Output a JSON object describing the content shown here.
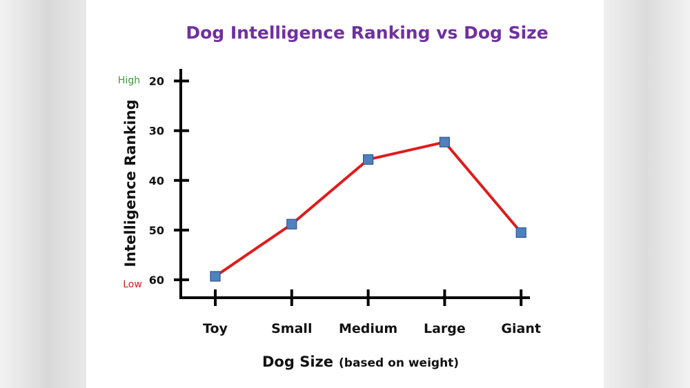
{
  "chart_data": {
    "type": "line",
    "title": "Dog Intelligence Ranking vs Dog Size",
    "xlabel": "Dog Size",
    "xlabel_note": "(based on weight)",
    "ylabel": "Intelligence Ranking",
    "y_high_label": "High",
    "y_low_label": "Low",
    "categories": [
      "Toy",
      "Small",
      "Medium",
      "Large",
      "Giant"
    ],
    "values": [
      59.3,
      48.8,
      35.8,
      32.3,
      50.5
    ],
    "ylim": [
      20,
      60
    ],
    "y_inverted": true,
    "yticks": [
      20,
      30,
      40,
      50,
      60
    ],
    "grid": false,
    "colors": {
      "title": "#7030a0",
      "line": "#e01b1b",
      "marker": "#4f81bd",
      "marker_edge": "#2f5597",
      "high": "#3a9a3a",
      "low": "#d02020",
      "axis": "#000000"
    }
  }
}
